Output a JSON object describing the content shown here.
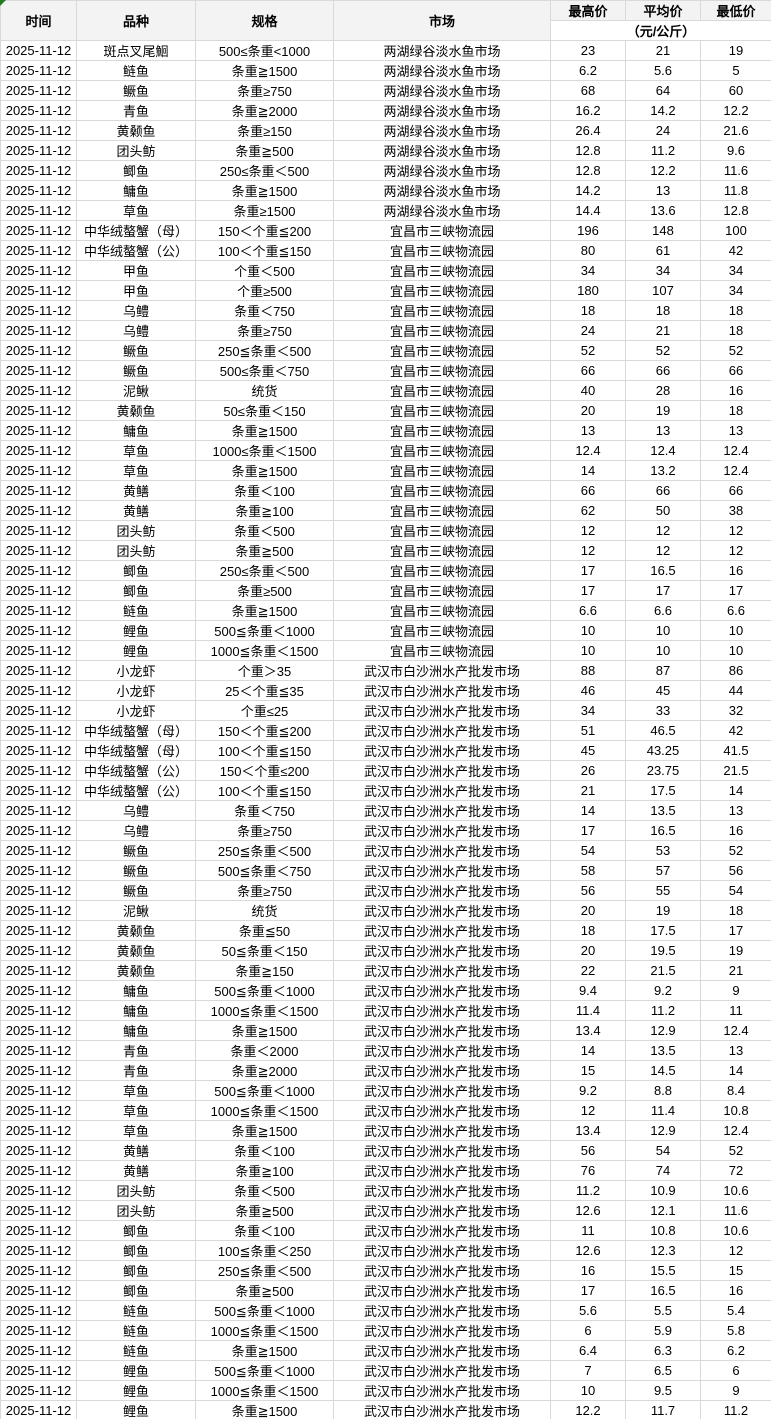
{
  "colors": {
    "header_bg": "#f3f3f3",
    "grid_border": "#d9d9d9",
    "corner_marker_green": "#1e7e1e"
  },
  "header": {
    "time": "时间",
    "species": "品种",
    "spec": "规格",
    "market": "市场",
    "high": "最高价",
    "avg": "平均价",
    "low": "最低价",
    "unit": "（元/公斤）"
  },
  "rows": [
    {
      "date": "2025-11-12",
      "species": "斑点叉尾鮰",
      "spec": "500≤条重<1000",
      "market": "两湖绿谷淡水鱼市场",
      "high": "23",
      "avg": "21",
      "low": "19"
    },
    {
      "date": "2025-11-12",
      "species": "鲢鱼",
      "spec": "条重≧1500",
      "market": "两湖绿谷淡水鱼市场",
      "high": "6.2",
      "avg": "5.6",
      "low": "5"
    },
    {
      "date": "2025-11-12",
      "species": "鳜鱼",
      "spec": "条重≥750",
      "market": "两湖绿谷淡水鱼市场",
      "high": "68",
      "avg": "64",
      "low": "60"
    },
    {
      "date": "2025-11-12",
      "species": "青鱼",
      "spec": "条重≧2000",
      "market": "两湖绿谷淡水鱼市场",
      "high": "16.2",
      "avg": "14.2",
      "low": "12.2"
    },
    {
      "date": "2025-11-12",
      "species": "黄颡鱼",
      "spec": "条重≥150",
      "market": "两湖绿谷淡水鱼市场",
      "high": "26.4",
      "avg": "24",
      "low": "21.6"
    },
    {
      "date": "2025-11-12",
      "species": "团头鲂",
      "spec": "条重≧500",
      "market": "两湖绿谷淡水鱼市场",
      "high": "12.8",
      "avg": "11.2",
      "low": "9.6"
    },
    {
      "date": "2025-11-12",
      "species": "鲫鱼",
      "spec": "250≤条重＜500",
      "market": "两湖绿谷淡水鱼市场",
      "high": "12.8",
      "avg": "12.2",
      "low": "11.6"
    },
    {
      "date": "2025-11-12",
      "species": "鳙鱼",
      "spec": "条重≧1500",
      "market": "两湖绿谷淡水鱼市场",
      "high": "14.2",
      "avg": "13",
      "low": "11.8"
    },
    {
      "date": "2025-11-12",
      "species": "草鱼",
      "spec": "条重≥1500",
      "market": "两湖绿谷淡水鱼市场",
      "high": "14.4",
      "avg": "13.6",
      "low": "12.8"
    },
    {
      "date": "2025-11-12",
      "species": "中华绒螯蟹（母）",
      "spec": "150＜个重≦200",
      "market": "宜昌市三峡物流园",
      "high": "196",
      "avg": "148",
      "low": "100"
    },
    {
      "date": "2025-11-12",
      "species": "中华绒螯蟹（公）",
      "spec": "100＜个重≦150",
      "market": "宜昌市三峡物流园",
      "high": "80",
      "avg": "61",
      "low": "42"
    },
    {
      "date": "2025-11-12",
      "species": "甲鱼",
      "spec": "个重＜500",
      "market": "宜昌市三峡物流园",
      "high": "34",
      "avg": "34",
      "low": "34"
    },
    {
      "date": "2025-11-12",
      "species": "甲鱼",
      "spec": "个重≥500",
      "market": "宜昌市三峡物流园",
      "high": "180",
      "avg": "107",
      "low": "34"
    },
    {
      "date": "2025-11-12",
      "species": "乌鳢",
      "spec": "条重＜750",
      "market": "宜昌市三峡物流园",
      "high": "18",
      "avg": "18",
      "low": "18"
    },
    {
      "date": "2025-11-12",
      "species": "乌鳢",
      "spec": "条重≥750",
      "market": "宜昌市三峡物流园",
      "high": "24",
      "avg": "21",
      "low": "18"
    },
    {
      "date": "2025-11-12",
      "species": "鳜鱼",
      "spec": "250≦条重＜500",
      "market": "宜昌市三峡物流园",
      "high": "52",
      "avg": "52",
      "low": "52"
    },
    {
      "date": "2025-11-12",
      "species": "鳜鱼",
      "spec": "500≤条重＜750",
      "market": "宜昌市三峡物流园",
      "high": "66",
      "avg": "66",
      "low": "66"
    },
    {
      "date": "2025-11-12",
      "species": "泥鳅",
      "spec": "统货",
      "market": "宜昌市三峡物流园",
      "high": "40",
      "avg": "28",
      "low": "16"
    },
    {
      "date": "2025-11-12",
      "species": "黄颡鱼",
      "spec": "50≤条重＜150",
      "market": "宜昌市三峡物流园",
      "high": "20",
      "avg": "19",
      "low": "18"
    },
    {
      "date": "2025-11-12",
      "species": "鳙鱼",
      "spec": "条重≧1500",
      "market": "宜昌市三峡物流园",
      "high": "13",
      "avg": "13",
      "low": "13"
    },
    {
      "date": "2025-11-12",
      "species": "草鱼",
      "spec": "1000≤条重＜1500",
      "market": "宜昌市三峡物流园",
      "high": "12.4",
      "avg": "12.4",
      "low": "12.4"
    },
    {
      "date": "2025-11-12",
      "species": "草鱼",
      "spec": "条重≧1500",
      "market": "宜昌市三峡物流园",
      "high": "14",
      "avg": "13.2",
      "low": "12.4"
    },
    {
      "date": "2025-11-12",
      "species": "黄鳝",
      "spec": "条重＜100",
      "market": "宜昌市三峡物流园",
      "high": "66",
      "avg": "66",
      "low": "66"
    },
    {
      "date": "2025-11-12",
      "species": "黄鳝",
      "spec": "条重≧100",
      "market": "宜昌市三峡物流园",
      "high": "62",
      "avg": "50",
      "low": "38"
    },
    {
      "date": "2025-11-12",
      "species": "团头鲂",
      "spec": "条重＜500",
      "market": "宜昌市三峡物流园",
      "high": "12",
      "avg": "12",
      "low": "12"
    },
    {
      "date": "2025-11-12",
      "species": "团头鲂",
      "spec": "条重≧500",
      "market": "宜昌市三峡物流园",
      "high": "12",
      "avg": "12",
      "low": "12"
    },
    {
      "date": "2025-11-12",
      "species": "鲫鱼",
      "spec": "250≤条重＜500",
      "market": "宜昌市三峡物流园",
      "high": "17",
      "avg": "16.5",
      "low": "16"
    },
    {
      "date": "2025-11-12",
      "species": "鲫鱼",
      "spec": "条重≥500",
      "market": "宜昌市三峡物流园",
      "high": "17",
      "avg": "17",
      "low": "17"
    },
    {
      "date": "2025-11-12",
      "species": "鲢鱼",
      "spec": "条重≧1500",
      "market": "宜昌市三峡物流园",
      "high": "6.6",
      "avg": "6.6",
      "low": "6.6"
    },
    {
      "date": "2025-11-12",
      "species": "鲤鱼",
      "spec": "500≦条重＜1000",
      "market": "宜昌市三峡物流园",
      "high": "10",
      "avg": "10",
      "low": "10"
    },
    {
      "date": "2025-11-12",
      "species": "鲤鱼",
      "spec": "1000≦条重＜1500",
      "market": "宜昌市三峡物流园",
      "high": "10",
      "avg": "10",
      "low": "10"
    },
    {
      "date": "2025-11-12",
      "species": "小龙虾",
      "spec": "个重＞35",
      "market": "武汉市白沙洲水产批发市场",
      "high": "88",
      "avg": "87",
      "low": "86"
    },
    {
      "date": "2025-11-12",
      "species": "小龙虾",
      "spec": "25＜个重≦35",
      "market": "武汉市白沙洲水产批发市场",
      "high": "46",
      "avg": "45",
      "low": "44"
    },
    {
      "date": "2025-11-12",
      "species": "小龙虾",
      "spec": "个重≤25",
      "market": "武汉市白沙洲水产批发市场",
      "high": "34",
      "avg": "33",
      "low": "32"
    },
    {
      "date": "2025-11-12",
      "species": "中华绒螯蟹（母）",
      "spec": "150＜个重≦200",
      "market": "武汉市白沙洲水产批发市场",
      "high": "51",
      "avg": "46.5",
      "low": "42"
    },
    {
      "date": "2025-11-12",
      "species": "中华绒螯蟹（母）",
      "spec": "100＜个重≦150",
      "market": "武汉市白沙洲水产批发市场",
      "high": "45",
      "avg": "43.25",
      "low": "41.5"
    },
    {
      "date": "2025-11-12",
      "species": "中华绒螯蟹（公）",
      "spec": "150＜个重≤200",
      "market": "武汉市白沙洲水产批发市场",
      "high": "26",
      "avg": "23.75",
      "low": "21.5"
    },
    {
      "date": "2025-11-12",
      "species": "中华绒螯蟹（公）",
      "spec": "100＜个重≦150",
      "market": "武汉市白沙洲水产批发市场",
      "high": "21",
      "avg": "17.5",
      "low": "14"
    },
    {
      "date": "2025-11-12",
      "species": "乌鳢",
      "spec": "条重＜750",
      "market": "武汉市白沙洲水产批发市场",
      "high": "14",
      "avg": "13.5",
      "low": "13"
    },
    {
      "date": "2025-11-12",
      "species": "乌鳢",
      "spec": "条重≥750",
      "market": "武汉市白沙洲水产批发市场",
      "high": "17",
      "avg": "16.5",
      "low": "16"
    },
    {
      "date": "2025-11-12",
      "species": "鳜鱼",
      "spec": "250≦条重＜500",
      "market": "武汉市白沙洲水产批发市场",
      "high": "54",
      "avg": "53",
      "low": "52"
    },
    {
      "date": "2025-11-12",
      "species": "鳜鱼",
      "spec": "500≦条重＜750",
      "market": "武汉市白沙洲水产批发市场",
      "high": "58",
      "avg": "57",
      "low": "56"
    },
    {
      "date": "2025-11-12",
      "species": "鳜鱼",
      "spec": "条重≥750",
      "market": "武汉市白沙洲水产批发市场",
      "high": "56",
      "avg": "55",
      "low": "54"
    },
    {
      "date": "2025-11-12",
      "species": "泥鳅",
      "spec": "统货",
      "market": "武汉市白沙洲水产批发市场",
      "high": "20",
      "avg": "19",
      "low": "18"
    },
    {
      "date": "2025-11-12",
      "species": "黄颡鱼",
      "spec": "条重≦50",
      "market": "武汉市白沙洲水产批发市场",
      "high": "18",
      "avg": "17.5",
      "low": "17"
    },
    {
      "date": "2025-11-12",
      "species": "黄颡鱼",
      "spec": "50≦条重＜150",
      "market": "武汉市白沙洲水产批发市场",
      "high": "20",
      "avg": "19.5",
      "low": "19"
    },
    {
      "date": "2025-11-12",
      "species": "黄颡鱼",
      "spec": "条重≧150",
      "market": "武汉市白沙洲水产批发市场",
      "high": "22",
      "avg": "21.5",
      "low": "21"
    },
    {
      "date": "2025-11-12",
      "species": "鳙鱼",
      "spec": "500≦条重＜1000",
      "market": "武汉市白沙洲水产批发市场",
      "high": "9.4",
      "avg": "9.2",
      "low": "9"
    },
    {
      "date": "2025-11-12",
      "species": "鳙鱼",
      "spec": "1000≦条重＜1500",
      "market": "武汉市白沙洲水产批发市场",
      "high": "11.4",
      "avg": "11.2",
      "low": "11"
    },
    {
      "date": "2025-11-12",
      "species": "鳙鱼",
      "spec": "条重≧1500",
      "market": "武汉市白沙洲水产批发市场",
      "high": "13.4",
      "avg": "12.9",
      "low": "12.4"
    },
    {
      "date": "2025-11-12",
      "species": "青鱼",
      "spec": "条重＜2000",
      "market": "武汉市白沙洲水产批发市场",
      "high": "14",
      "avg": "13.5",
      "low": "13"
    },
    {
      "date": "2025-11-12",
      "species": "青鱼",
      "spec": "条重≧2000",
      "market": "武汉市白沙洲水产批发市场",
      "high": "15",
      "avg": "14.5",
      "low": "14"
    },
    {
      "date": "2025-11-12",
      "species": "草鱼",
      "spec": "500≦条重＜1000",
      "market": "武汉市白沙洲水产批发市场",
      "high": "9.2",
      "avg": "8.8",
      "low": "8.4"
    },
    {
      "date": "2025-11-12",
      "species": "草鱼",
      "spec": "1000≦条重＜1500",
      "market": "武汉市白沙洲水产批发市场",
      "high": "12",
      "avg": "11.4",
      "low": "10.8"
    },
    {
      "date": "2025-11-12",
      "species": "草鱼",
      "spec": "条重≧1500",
      "market": "武汉市白沙洲水产批发市场",
      "high": "13.4",
      "avg": "12.9",
      "low": "12.4"
    },
    {
      "date": "2025-11-12",
      "species": "黄鳝",
      "spec": "条重＜100",
      "market": "武汉市白沙洲水产批发市场",
      "high": "56",
      "avg": "54",
      "low": "52"
    },
    {
      "date": "2025-11-12",
      "species": "黄鳝",
      "spec": "条重≧100",
      "market": "武汉市白沙洲水产批发市场",
      "high": "76",
      "avg": "74",
      "low": "72"
    },
    {
      "date": "2025-11-12",
      "species": "团头鲂",
      "spec": "条重＜500",
      "market": "武汉市白沙洲水产批发市场",
      "high": "11.2",
      "avg": "10.9",
      "low": "10.6"
    },
    {
      "date": "2025-11-12",
      "species": "团头鲂",
      "spec": "条重≧500",
      "market": "武汉市白沙洲水产批发市场",
      "high": "12.6",
      "avg": "12.1",
      "low": "11.6"
    },
    {
      "date": "2025-11-12",
      "species": "鲫鱼",
      "spec": "条重＜100",
      "market": "武汉市白沙洲水产批发市场",
      "high": "11",
      "avg": "10.8",
      "low": "10.6"
    },
    {
      "date": "2025-11-12",
      "species": "鲫鱼",
      "spec": "100≦条重＜250",
      "market": "武汉市白沙洲水产批发市场",
      "high": "12.6",
      "avg": "12.3",
      "low": "12"
    },
    {
      "date": "2025-11-12",
      "species": "鲫鱼",
      "spec": "250≦条重＜500",
      "market": "武汉市白沙洲水产批发市场",
      "high": "16",
      "avg": "15.5",
      "low": "15"
    },
    {
      "date": "2025-11-12",
      "species": "鲫鱼",
      "spec": "条重≧500",
      "market": "武汉市白沙洲水产批发市场",
      "high": "17",
      "avg": "16.5",
      "low": "16"
    },
    {
      "date": "2025-11-12",
      "species": "鲢鱼",
      "spec": "500≦条重＜1000",
      "market": "武汉市白沙洲水产批发市场",
      "high": "5.6",
      "avg": "5.5",
      "low": "5.4"
    },
    {
      "date": "2025-11-12",
      "species": "鲢鱼",
      "spec": "1000≦条重＜1500",
      "market": "武汉市白沙洲水产批发市场",
      "high": "6",
      "avg": "5.9",
      "low": "5.8"
    },
    {
      "date": "2025-11-12",
      "species": "鲢鱼",
      "spec": "条重≧1500",
      "market": "武汉市白沙洲水产批发市场",
      "high": "6.4",
      "avg": "6.3",
      "low": "6.2"
    },
    {
      "date": "2025-11-12",
      "species": "鲤鱼",
      "spec": "500≦条重＜1000",
      "market": "武汉市白沙洲水产批发市场",
      "high": "7",
      "avg": "6.5",
      "low": "6"
    },
    {
      "date": "2025-11-12",
      "species": "鲤鱼",
      "spec": "1000≦条重＜1500",
      "market": "武汉市白沙洲水产批发市场",
      "high": "10",
      "avg": "9.5",
      "low": "9"
    },
    {
      "date": "2025-11-12",
      "species": "鲤鱼",
      "spec": "条重≧1500",
      "market": "武汉市白沙洲水产批发市场",
      "high": "12.2",
      "avg": "11.7",
      "low": "11.2"
    }
  ]
}
